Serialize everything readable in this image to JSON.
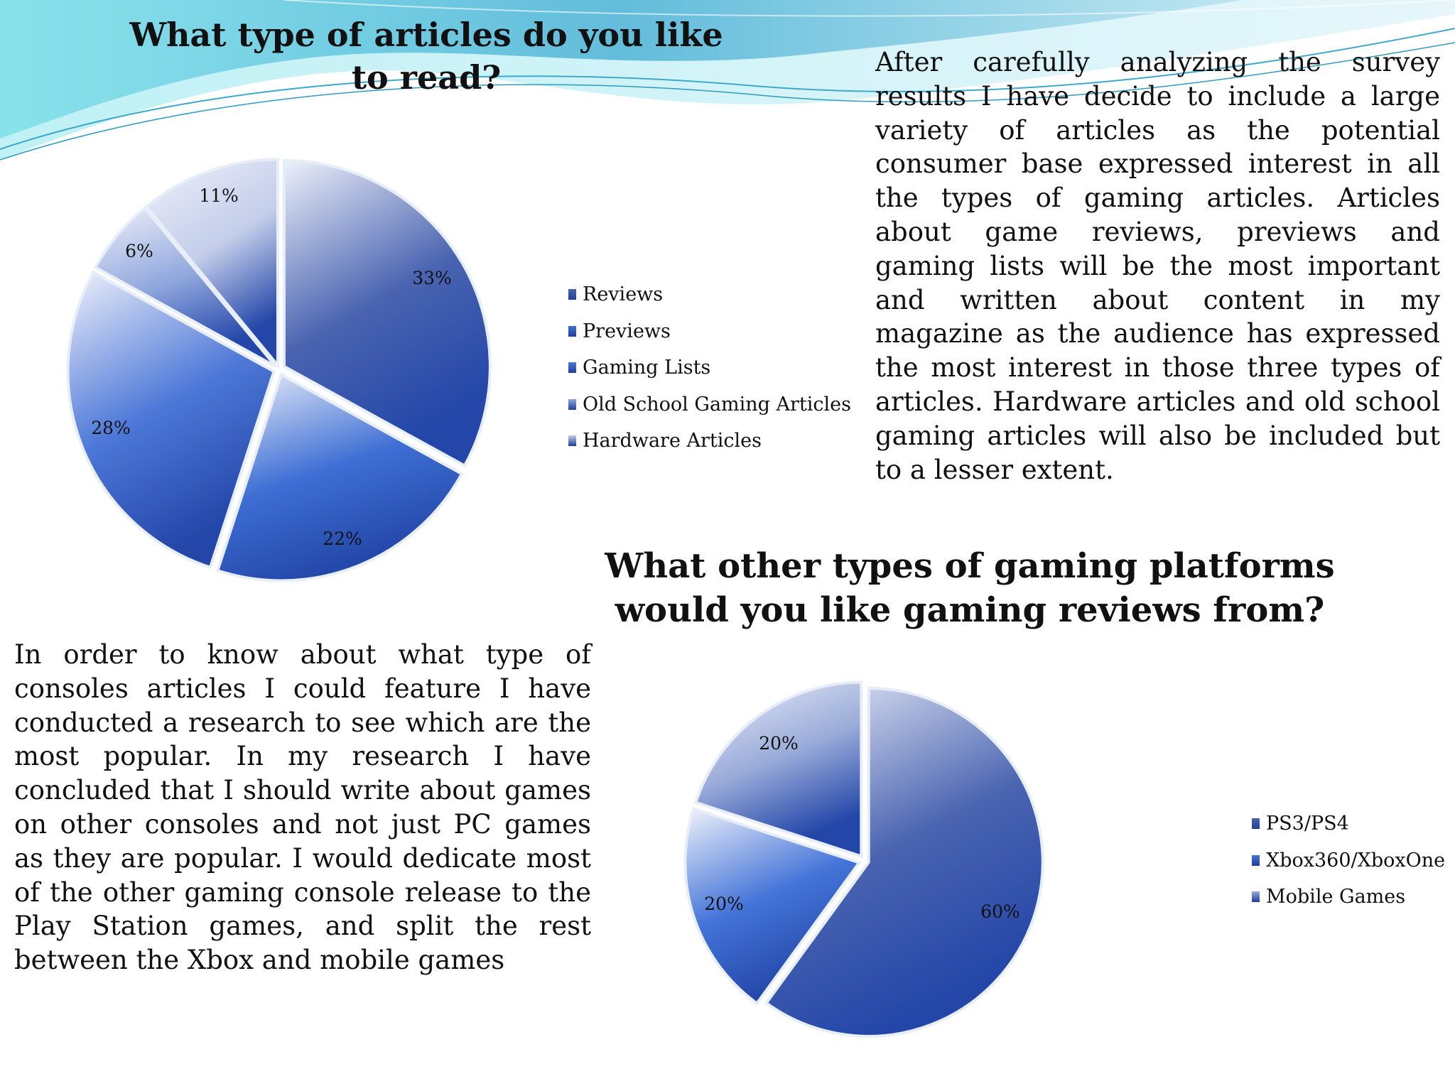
{
  "texts": {
    "para1": "After carefully analyzing the survey results I have decide to include a large variety of articles as the potential consumer base expressed interest in all the types of gaming articles. Articles about game reviews, previews and gaming lists will be the most important and written about content in my magazine as the audience has expressed the most interest in those three types of articles. Hardware articles and old school gaming articles will also be included but to a lesser extent.",
    "para2": "In order to know about what type of  consoles articles I could feature I have conducted a research to see which are the most popular. In my research I have concluded that I should write about games on other consoles and not just PC games as they are popular.  I would dedicate most of the other gaming console release to the Play Station games, and split the rest between the Xbox and mobile games"
  },
  "colors": {
    "reviews": "#4a64b0",
    "previews": "#3e6fd4",
    "gaming_lists": "#4d78d8",
    "old_school": "#8fa6dc",
    "hardware": "#c3cdea",
    "ps": "#4a64b0",
    "xbox": "#4474d8",
    "mobile": "#98aad8",
    "wave": "#5bc6dc"
  },
  "chart_data": [
    {
      "type": "pie",
      "title": "What type of articles do you like to read?",
      "categories": [
        "Reviews",
        "Previews",
        "Gaming Lists",
        "Old School Gaming Articles",
        "Hardware Articles"
      ],
      "values": [
        33,
        22,
        28,
        6,
        11
      ],
      "labels": [
        "33%",
        "22%",
        "28%",
        "6%",
        "11%"
      ],
      "colors": [
        "#4a64b0",
        "#3e6fd4",
        "#4d78d8",
        "#8fa6dc",
        "#c3cdea"
      ],
      "legend_position": "right"
    },
    {
      "type": "pie",
      "title": "What other types of gaming platforms would you like gaming reviews from?",
      "categories": [
        "PS3/PS4",
        "Xbox360/XboxOne",
        "Mobile Games"
      ],
      "values": [
        60,
        20,
        20
      ],
      "labels": [
        "60%",
        "20%",
        "20%"
      ],
      "colors": [
        "#4a64b0",
        "#4474d8",
        "#98aad8"
      ],
      "legend_position": "right"
    }
  ]
}
